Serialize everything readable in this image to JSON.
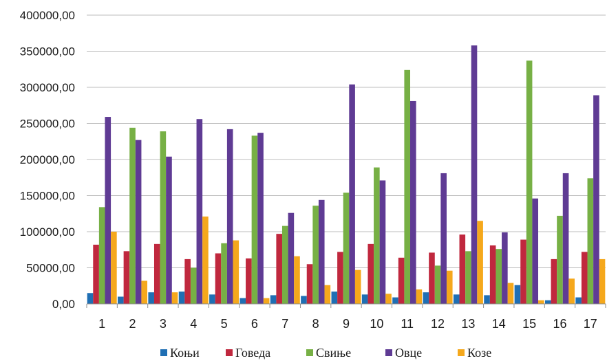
{
  "chart_data": {
    "type": "bar",
    "title": "",
    "xlabel": "",
    "ylabel": "",
    "ylim": [
      0,
      400000
    ],
    "y_ticks": [
      0,
      50000,
      100000,
      150000,
      200000,
      250000,
      300000,
      350000,
      400000
    ],
    "y_tick_labels": [
      "0,00",
      "50000,00",
      "100000,00",
      "150000,00",
      "200000,00",
      "250000,00",
      "300000,00",
      "350000,00",
      "400000,00"
    ],
    "grid": true,
    "legend_position": "bottom",
    "categories": [
      "1",
      "2",
      "3",
      "4",
      "5",
      "6",
      "7",
      "8",
      "9",
      "10",
      "11",
      "12",
      "13",
      "14",
      "15",
      "16",
      "17"
    ],
    "series": [
      {
        "name": "Коњи",
        "color": "#1f6fb4",
        "values": [
          15000,
          10000,
          16000,
          17000,
          13000,
          8000,
          12000,
          11000,
          17000,
          13000,
          9000,
          16000,
          13000,
          12000,
          26000,
          5000,
          9000
        ]
      },
      {
        "name": "Говеда",
        "color": "#c0283e",
        "values": [
          82000,
          73000,
          83000,
          62000,
          70000,
          63000,
          97000,
          55000,
          72000,
          83000,
          64000,
          71000,
          96000,
          81000,
          89000,
          62000,
          72000
        ]
      },
      {
        "name": "Свиње",
        "color": "#77b045",
        "values": [
          134000,
          244000,
          239000,
          50000,
          84000,
          233000,
          108000,
          136000,
          154000,
          189000,
          324000,
          53000,
          73000,
          76000,
          337000,
          122000,
          174000
        ]
      },
      {
        "name": "Овце",
        "color": "#5f3b94",
        "values": [
          259000,
          227000,
          204000,
          256000,
          242000,
          237000,
          126000,
          144000,
          304000,
          171000,
          281000,
          181000,
          358000,
          99000,
          146000,
          181000,
          289000
        ]
      },
      {
        "name": "Козе",
        "color": "#f5a81c",
        "values": [
          100000,
          32000,
          16000,
          121000,
          88000,
          8000,
          66000,
          26000,
          47000,
          14000,
          20000,
          46000,
          115000,
          29000,
          5000,
          35000,
          62000
        ]
      }
    ]
  }
}
